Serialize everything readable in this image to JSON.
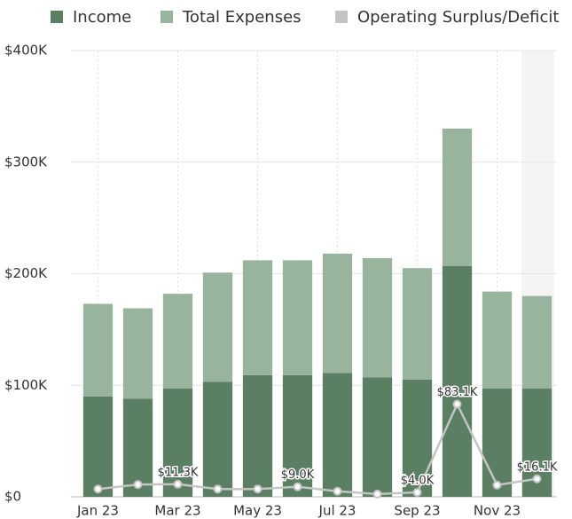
{
  "chart_data": {
    "type": "bar",
    "categories": [
      "Jan 23",
      null,
      "Mar 23",
      null,
      "May 23",
      null,
      "Jul 23",
      null,
      "Sep 23",
      null,
      "Nov 23",
      null
    ],
    "series": [
      {
        "name": "Income",
        "color": "#5b7f63",
        "values": [
          90,
          88,
          97,
          103,
          109,
          109,
          111,
          107,
          105,
          207,
          97,
          97
        ]
      },
      {
        "name": "Total Expenses",
        "color": "#98b49d",
        "values": [
          83,
          81,
          85,
          98,
          103,
          103,
          107,
          107,
          100,
          123,
          87,
          83
        ]
      },
      {
        "name": "Operating Surplus/Deficit",
        "color": "#c4c4c4",
        "line": true,
        "values": [
          7,
          11,
          11.3,
          7,
          7,
          9.0,
          5,
          2.5,
          4.0,
          83.1,
          10.5,
          16.1
        ],
        "value_labels": [
          null,
          null,
          "$11.3K",
          null,
          null,
          "$9.0K",
          null,
          null,
          "$4.0K",
          "$83.1K",
          null,
          "$16.1K"
        ]
      }
    ],
    "ylim": [
      0,
      400
    ],
    "yticks": [
      {
        "value": 0,
        "label": "$0"
      },
      {
        "value": 100,
        "label": "$100K"
      },
      {
        "value": 200,
        "label": "$200K"
      },
      {
        "value": 300,
        "label": "$300K"
      },
      {
        "value": 400,
        "label": "$400K"
      }
    ],
    "grid": true
  }
}
